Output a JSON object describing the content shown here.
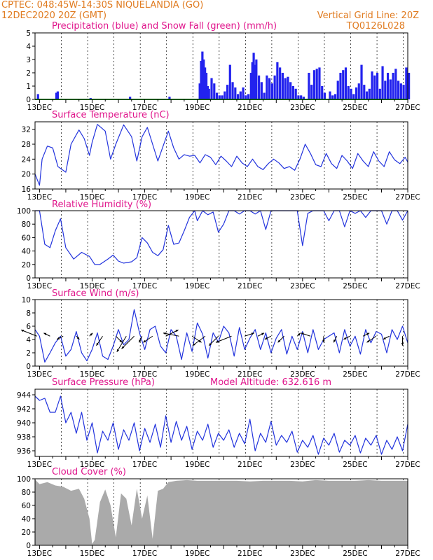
{
  "header": {
    "station": "CPTEC:   048:45W-14:30S   NIQUELANDIA (GO)",
    "date": "12DEC2020 20Z (GMT)",
    "grid_note": "Vertical Grid Line: 20Z",
    "code": "TQ0126L028"
  },
  "colors": {
    "header": "#e07b20",
    "title": "#e0168c",
    "line": "#2233dd",
    "precip": "#2222ee",
    "snow": "#22aa22",
    "cloud": "#aaaaaa"
  },
  "x_labels": [
    "13DEC",
    "15DEC",
    "17DEC",
    "19DEC",
    "21DEC",
    "23DEC",
    "25DEC",
    "27DEC"
  ],
  "x_range_days": [
    12.83,
    27.0
  ],
  "chart_data": [
    {
      "type": "bar",
      "title": "Precipitation (blue) and Snow Fall (green) (mm/h)",
      "ylim": [
        0,
        5
      ],
      "yticks": [
        "0",
        "1",
        "2",
        "3",
        "4",
        "5"
      ],
      "series": [
        {
          "name": "Precipitation",
          "color": "#2222ee",
          "x_day": [
            12.9,
            13.6,
            13.65,
            14.9,
            16.4,
            17.9,
            19.05,
            19.1,
            19.15,
            19.2,
            19.25,
            19.3,
            19.35,
            19.4,
            19.5,
            19.6,
            19.7,
            19.8,
            19.9,
            20.0,
            20.1,
            20.2,
            20.3,
            20.4,
            20.5,
            20.6,
            20.7,
            20.8,
            20.9,
            21.0,
            21.05,
            21.1,
            21.15,
            21.2,
            21.3,
            21.4,
            21.5,
            21.6,
            21.7,
            21.8,
            21.9,
            22.0,
            22.1,
            22.2,
            22.3,
            22.4,
            22.5,
            22.6,
            22.7,
            22.8,
            22.9,
            23.0,
            23.2,
            23.3,
            23.4,
            23.5,
            23.6,
            23.7,
            23.8,
            24.0,
            24.1,
            24.2,
            24.3,
            24.4,
            24.5,
            24.6,
            24.7,
            24.8,
            24.9,
            25.0,
            25.1,
            25.2,
            25.3,
            25.4,
            25.5,
            25.6,
            25.7,
            25.8,
            25.9,
            26.0,
            26.1,
            26.2,
            26.3,
            26.4,
            26.5,
            26.6,
            26.7,
            26.8,
            26.9,
            27.0
          ],
          "values": [
            0.4,
            0.5,
            0.6,
            0.1,
            0.2,
            0.2,
            1.2,
            2.9,
            3.6,
            3.0,
            2.4,
            2.0,
            1.0,
            0.8,
            1.6,
            1.2,
            0.5,
            0.3,
            0.3,
            0.6,
            1.1,
            2.6,
            1.3,
            0.9,
            0.4,
            0.6,
            0.9,
            0.3,
            0.4,
            2.0,
            2.8,
            3.5,
            2.6,
            3.0,
            1.8,
            1.3,
            0.5,
            1.8,
            1.6,
            1.2,
            1.8,
            2.8,
            2.4,
            2.0,
            1.6,
            1.7,
            1.3,
            1.0,
            0.8,
            0.3,
            0.3,
            0.2,
            2.0,
            1.1,
            2.2,
            2.3,
            2.4,
            1.0,
            0.5,
            0.6,
            0.3,
            0.4,
            1.4,
            2.0,
            2.2,
            2.4,
            1.0,
            0.8,
            0.4,
            0.9,
            1.2,
            2.6,
            1.1,
            0.6,
            0.8,
            2.1,
            1.8,
            2.0,
            0.8,
            2.5,
            1.4,
            2.0,
            1.5,
            2.0,
            2.3,
            1.4,
            1.2,
            1.1,
            2.4,
            2.0
          ]
        },
        {
          "name": "Snow Fall",
          "color": "#22aa22",
          "x_day": [
            12.83,
            27.0
          ],
          "values": [
            0,
            0
          ]
        }
      ]
    },
    {
      "type": "line",
      "title": "Surface Temperature (nC)",
      "ylim": [
        16,
        34
      ],
      "yticks": [
        "16",
        "20",
        "24",
        "28",
        "32"
      ],
      "x_day": [
        12.83,
        13.0,
        13.1,
        13.3,
        13.5,
        13.7,
        14.0,
        14.2,
        14.5,
        14.7,
        14.9,
        15.0,
        15.2,
        15.5,
        15.7,
        15.9,
        16.2,
        16.5,
        16.7,
        16.9,
        17.1,
        17.3,
        17.5,
        17.7,
        17.9,
        18.1,
        18.3,
        18.5,
        18.7,
        18.9,
        19.1,
        19.3,
        19.5,
        19.7,
        19.9,
        20.1,
        20.3,
        20.5,
        20.7,
        20.9,
        21.1,
        21.3,
        21.5,
        21.7,
        21.9,
        22.1,
        22.3,
        22.5,
        22.7,
        22.9,
        23.1,
        23.3,
        23.5,
        23.7,
        23.9,
        24.1,
        24.3,
        24.5,
        24.7,
        24.9,
        25.1,
        25.3,
        25.5,
        25.7,
        25.9,
        26.1,
        26.3,
        26.5,
        26.7,
        26.9,
        27.0
      ],
      "values": [
        20.0,
        17.0,
        24.0,
        27.5,
        27.0,
        22.0,
        20.5,
        28.0,
        31.8,
        29.5,
        25.0,
        28.5,
        33.3,
        31.5,
        24.0,
        28.0,
        33.2,
        30.0,
        23.5,
        30.0,
        32.5,
        28.0,
        23.5,
        27.5,
        31.5,
        27.0,
        24.0,
        25.2,
        24.8,
        25.0,
        23.0,
        25.2,
        24.5,
        22.5,
        24.8,
        23.5,
        22.0,
        24.8,
        23.0,
        22.0,
        24.0,
        22.0,
        21.2,
        22.8,
        24.0,
        23.0,
        21.5,
        22.0,
        21.0,
        24.0,
        28.0,
        25.5,
        22.5,
        22.0,
        25.5,
        22.8,
        21.5,
        25.0,
        23.5,
        21.5,
        25.5,
        23.5,
        22.0,
        26.0,
        23.5,
        22.0,
        26.0,
        23.8,
        22.8,
        24.5,
        23.2
      ]
    },
    {
      "type": "line",
      "title": "Relative Humidity (%)",
      "ylim": [
        0,
        100
      ],
      "yticks": [
        "0",
        "20",
        "40",
        "60",
        "80",
        "100"
      ],
      "x_day": [
        12.83,
        13.0,
        13.2,
        13.4,
        13.6,
        13.8,
        14.0,
        14.3,
        14.6,
        14.9,
        15.1,
        15.3,
        15.6,
        15.8,
        16.0,
        16.2,
        16.5,
        16.7,
        16.9,
        17.1,
        17.3,
        17.5,
        17.7,
        17.9,
        18.1,
        18.3,
        18.5,
        18.7,
        18.9,
        19.0,
        19.2,
        19.4,
        19.6,
        19.8,
        20.0,
        20.2,
        20.4,
        20.6,
        20.8,
        21.0,
        21.2,
        21.4,
        21.6,
        21.8,
        22.0,
        22.2,
        22.4,
        22.6,
        22.8,
        23.0,
        23.2,
        23.4,
        23.6,
        23.8,
        24.0,
        24.2,
        24.4,
        24.6,
        24.8,
        25.0,
        25.2,
        25.4,
        25.6,
        25.8,
        26.0,
        26.2,
        26.4,
        26.6,
        26.8,
        27.0
      ],
      "values": [
        100,
        100,
        50,
        45,
        70,
        88,
        45,
        28,
        38,
        32,
        20,
        20,
        28,
        34,
        25,
        22,
        24,
        30,
        60,
        52,
        38,
        33,
        42,
        78,
        50,
        52,
        70,
        90,
        100,
        85,
        100,
        94,
        98,
        68,
        80,
        100,
        100,
        95,
        100,
        100,
        95,
        100,
        72,
        100,
        100,
        100,
        100,
        100,
        100,
        48,
        96,
        100,
        100,
        100,
        85,
        100,
        100,
        76,
        100,
        96,
        100,
        90,
        100,
        100,
        100,
        80,
        100,
        100,
        86,
        100
      ]
    },
    {
      "type": "line",
      "title": "Surface Wind (m/s)",
      "ylim": [
        0,
        10
      ],
      "yticks": [
        "0",
        "2",
        "4",
        "6",
        "8",
        "10"
      ],
      "x_day": [
        12.83,
        13.0,
        13.2,
        13.4,
        13.6,
        13.8,
        14.0,
        14.2,
        14.4,
        14.6,
        14.8,
        15.0,
        15.2,
        15.4,
        15.6,
        15.8,
        16.0,
        16.2,
        16.4,
        16.6,
        16.8,
        17.0,
        17.2,
        17.4,
        17.6,
        17.8,
        18.0,
        18.2,
        18.4,
        18.6,
        18.8,
        19.0,
        19.2,
        19.4,
        19.6,
        19.8,
        20.0,
        20.2,
        20.4,
        20.6,
        20.8,
        21.0,
        21.2,
        21.4,
        21.6,
        21.8,
        22.0,
        22.2,
        22.4,
        22.6,
        22.8,
        23.0,
        23.2,
        23.4,
        23.6,
        23.8,
        24.0,
        24.2,
        24.4,
        24.6,
        24.8,
        25.0,
        25.2,
        25.4,
        25.6,
        25.8,
        26.0,
        26.2,
        26.4,
        26.6,
        26.8,
        27.0
      ],
      "values": [
        5.5,
        4.5,
        0.6,
        2.0,
        3.5,
        4.5,
        1.5,
        2.5,
        5.2,
        2.0,
        0.8,
        2.5,
        5.0,
        1.5,
        1.0,
        3.0,
        5.5,
        3.2,
        4.0,
        8.5,
        5.0,
        2.5,
        5.5,
        6.0,
        3.0,
        2.0,
        5.5,
        4.5,
        1.0,
        5.0,
        2.2,
        6.5,
        4.8,
        1.2,
        5.0,
        3.6,
        6.0,
        5.0,
        1.5,
        5.8,
        2.5,
        4.2,
        5.5,
        2.5,
        5.0,
        2.0,
        4.2,
        5.5,
        1.8,
        4.5,
        2.5,
        5.2,
        2.0,
        5.5,
        2.5,
        4.0,
        4.5,
        5.0,
        2.0,
        5.5,
        3.0,
        4.5,
        1.8,
        5.5,
        3.5,
        5.2,
        4.8,
        2.0,
        5.5,
        4.0,
        6.0,
        3.5
      ]
    },
    {
      "type": "line",
      "title": "Surface Pressure (hPa)",
      "annotation": "Model Altitude: 632.616 m",
      "ylim": [
        935.2,
        944.8
      ],
      "yticks": [
        "936",
        "938",
        "940",
        "942",
        "944"
      ],
      "x_day": [
        12.83,
        13.0,
        13.2,
        13.4,
        13.6,
        13.8,
        14.0,
        14.2,
        14.4,
        14.6,
        14.8,
        15.0,
        15.2,
        15.4,
        15.6,
        15.8,
        16.0,
        16.2,
        16.4,
        16.6,
        16.8,
        17.0,
        17.2,
        17.4,
        17.6,
        17.8,
        18.0,
        18.2,
        18.4,
        18.6,
        18.8,
        19.0,
        19.2,
        19.4,
        19.6,
        19.8,
        20.0,
        20.2,
        20.4,
        20.6,
        20.8,
        21.0,
        21.2,
        21.4,
        21.6,
        21.8,
        22.0,
        22.2,
        22.4,
        22.6,
        22.8,
        23.0,
        23.2,
        23.4,
        23.6,
        23.8,
        24.0,
        24.2,
        24.4,
        24.6,
        24.8,
        25.0,
        25.2,
        25.4,
        25.6,
        25.8,
        26.0,
        26.2,
        26.4,
        26.6,
        26.8,
        27.0
      ],
      "values": [
        943.8,
        943.2,
        943.5,
        941.5,
        941.5,
        943.8,
        940.0,
        941.5,
        938.5,
        941.5,
        937.5,
        940.0,
        935.7,
        938.8,
        937.5,
        940.0,
        936.2,
        939.0,
        937.5,
        940.0,
        936.0,
        939.2,
        937.2,
        939.8,
        936.5,
        941.0,
        937.2,
        940.2,
        937.5,
        939.5,
        936.2,
        938.8,
        937.5,
        939.8,
        936.5,
        938.5,
        937.5,
        939.0,
        936.5,
        938.5,
        937.0,
        940.5,
        936.0,
        938.5,
        937.2,
        940.2,
        936.8,
        938.2,
        937.2,
        938.8,
        935.8,
        937.5,
        936.5,
        938.2,
        935.5,
        937.8,
        936.8,
        938.5,
        935.8,
        937.5,
        936.8,
        938.2,
        935.7,
        937.8,
        936.8,
        938.2,
        935.5,
        937.5,
        936.2,
        938.0,
        936.0,
        939.8
      ]
    },
    {
      "type": "area",
      "title": "Cloud Cover (%)",
      "ylim": [
        0,
        100
      ],
      "yticks": [
        "0",
        "20",
        "40",
        "60",
        "80",
        "100"
      ],
      "color": "#aaaaaa",
      "x_day": [
        12.83,
        13.0,
        13.3,
        13.6,
        13.9,
        14.2,
        14.5,
        14.7,
        14.9,
        15.0,
        15.1,
        15.3,
        15.5,
        15.7,
        15.9,
        16.1,
        16.3,
        16.5,
        16.7,
        16.9,
        17.1,
        17.3,
        17.5,
        17.7,
        17.9,
        18.2,
        18.6,
        19.0,
        19.5,
        20.0,
        20.5,
        21.0,
        21.5,
        22.0,
        22.5,
        23.0,
        23.5,
        24.0,
        24.5,
        25.0,
        25.5,
        26.0,
        26.5,
        27.0
      ],
      "values": [
        99,
        92,
        95,
        90,
        88,
        82,
        85,
        70,
        40,
        2,
        8,
        65,
        84,
        60,
        12,
        78,
        70,
        30,
        85,
        40,
        75,
        10,
        82,
        85,
        95,
        97,
        98,
        97,
        97,
        97,
        97,
        96,
        97,
        97,
        97,
        96,
        98,
        97,
        97,
        97,
        98,
        97,
        97,
        97
      ]
    }
  ],
  "wind_arrows": {
    "x_day": [
      12.9,
      13.4,
      13.9,
      14.4,
      14.9,
      15.4,
      15.9,
      16.3,
      16.6,
      16.9,
      17.3,
      17.8,
      18.3,
      18.8,
      19.3,
      19.8,
      20.3,
      20.8,
      21.3,
      21.8,
      22.3,
      22.8,
      23.3,
      23.8,
      24.3,
      24.8,
      25.3,
      25.8,
      26.3,
      26.8
    ],
    "u": [
      -5,
      -2,
      -2,
      1,
      1,
      -2,
      2,
      -3,
      -4,
      -1,
      -3,
      4,
      -5,
      3,
      -4,
      -3,
      -5,
      3,
      2,
      -2,
      -2,
      1,
      -3,
      0,
      -1,
      -2,
      2,
      -3,
      -2,
      0
    ],
    "v": [
      2,
      1,
      -1,
      -1,
      1,
      -3,
      -2,
      -5,
      -4,
      -2,
      -2,
      2,
      1,
      -2,
      -3,
      -3,
      -2,
      1,
      1,
      -1,
      -2,
      1,
      1,
      -2,
      -2,
      -1,
      1,
      -2,
      -1,
      -3
    ]
  }
}
